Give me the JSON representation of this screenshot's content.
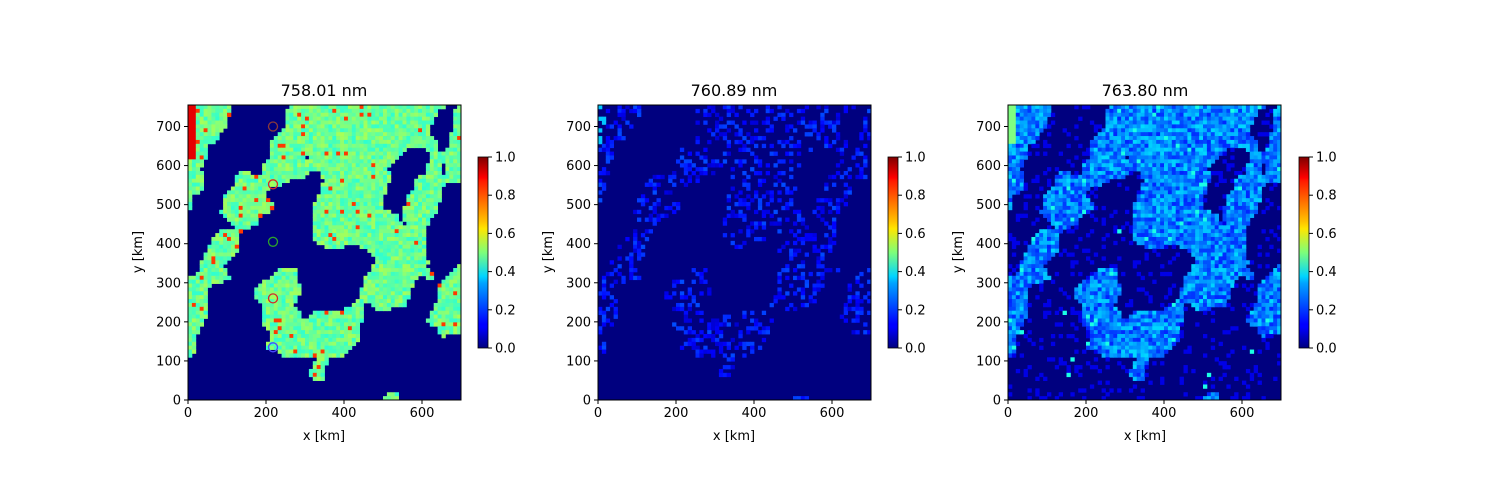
{
  "chart_data": [
    {
      "type": "heatmap",
      "title": "758.01 nm",
      "xlabel": "x [km]",
      "ylabel": "y [km]",
      "xlim": [
        0,
        700
      ],
      "ylim": [
        0,
        755
      ],
      "xticks": [
        0,
        200,
        400,
        600
      ],
      "yticks": [
        0,
        100,
        200,
        300,
        400,
        500,
        600,
        700
      ],
      "colormap": "jet",
      "colorbar": {
        "min": 0.0,
        "max": 1.0,
        "ticks": [
          "0.0",
          "0.2",
          "0.4",
          "0.6",
          "0.8",
          "1.0"
        ]
      },
      "base_level": 0.48,
      "markers": [
        {
          "x": 218,
          "y": 700,
          "color": "#8b3a3a"
        },
        {
          "x": 218,
          "y": 552,
          "color": "#d62728"
        },
        {
          "x": 218,
          "y": 405,
          "color": "#2ca02c"
        },
        {
          "x": 218,
          "y": 260,
          "color": "#d62728"
        },
        {
          "x": 218,
          "y": 135,
          "color": "#4a4aff"
        }
      ]
    },
    {
      "type": "heatmap",
      "title": "760.89 nm",
      "xlabel": "x [km]",
      "ylabel": "y [km]",
      "xlim": [
        0,
        700
      ],
      "ylim": [
        0,
        755
      ],
      "xticks": [
        0,
        200,
        400,
        600
      ],
      "yticks": [
        0,
        100,
        200,
        300,
        400,
        500,
        600,
        700
      ],
      "colormap": "jet",
      "colorbar": {
        "min": 0.0,
        "max": 1.0,
        "ticks": [
          "0.0",
          "0.2",
          "0.4",
          "0.6",
          "0.8",
          "1.0"
        ]
      },
      "base_level": 0.08
    },
    {
      "type": "heatmap",
      "title": "763.80 nm",
      "xlabel": "x [km]",
      "ylabel": "y [km]",
      "xlim": [
        0,
        700
      ],
      "ylim": [
        0,
        755
      ],
      "xticks": [
        0,
        200,
        400,
        600
      ],
      "yticks": [
        0,
        100,
        200,
        300,
        400,
        500,
        600,
        700
      ],
      "colormap": "jet",
      "colorbar": {
        "min": 0.0,
        "max": 1.0,
        "ticks": [
          "0.0",
          "0.2",
          "0.4",
          "0.6",
          "0.8",
          "1.0"
        ]
      },
      "base_level": 0.16
    }
  ]
}
